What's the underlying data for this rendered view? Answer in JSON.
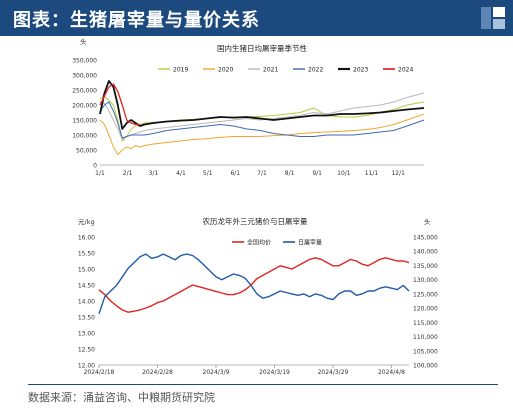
{
  "header": {
    "title": "图表：生猪屠宰量与量价关系"
  },
  "source": "数据来源：涌益咨询、中粮期货研究院",
  "chart_data": [
    {
      "type": "line",
      "title": "国内生猪日均屠宰量季节性",
      "ylabel": "头",
      "ylim": [
        0,
        350000
      ],
      "yticks": [
        "0",
        "50,000",
        "100,000",
        "150,000",
        "200,000",
        "250,000",
        "300,000",
        "350,000"
      ],
      "xticks": [
        "1/1",
        "2/1",
        "3/1",
        "4/1",
        "5/1",
        "6/1",
        "7/1",
        "8/1",
        "9/1",
        "10/1",
        "11/1",
        "12/1"
      ],
      "x": [
        0,
        5,
        10,
        15,
        20,
        25,
        30,
        35,
        40,
        45,
        50,
        60,
        75,
        90,
        105,
        120,
        135,
        150,
        165,
        180,
        195,
        210,
        225,
        240,
        255,
        270,
        285,
        300,
        315,
        330,
        345,
        364
      ],
      "series": [
        {
          "name": "2019",
          "color": "#b9cc3c",
          "width": 1,
          "values": [
            220000,
            230000,
            215000,
            200000,
            150000,
            80000,
            95000,
            120000,
            130000,
            135000,
            140000,
            142000,
            145000,
            150000,
            152000,
            155000,
            158000,
            160000,
            160000,
            162000,
            165000,
            170000,
            175000,
            190000,
            165000,
            160000,
            160000,
            165000,
            175000,
            185000,
            200000,
            210000
          ]
        },
        {
          "name": "2020",
          "color": "#f2a630",
          "width": 1,
          "values": [
            150000,
            135000,
            100000,
            60000,
            35000,
            50000,
            60000,
            55000,
            65000,
            60000,
            65000,
            70000,
            75000,
            80000,
            85000,
            88000,
            92000,
            95000,
            95000,
            95000,
            98000,
            100000,
            105000,
            108000,
            110000,
            112000,
            115000,
            118000,
            125000,
            135000,
            150000,
            170000
          ]
        },
        {
          "name": "2021",
          "color": "#b8b8b8",
          "width": 1,
          "values": [
            210000,
            205000,
            180000,
            150000,
            120000,
            85000,
            95000,
            100000,
            105000,
            110000,
            115000,
            120000,
            125000,
            130000,
            135000,
            140000,
            145000,
            150000,
            155000,
            150000,
            155000,
            160000,
            165000,
            175000,
            170000,
            180000,
            190000,
            195000,
            200000,
            210000,
            225000,
            240000
          ]
        },
        {
          "name": "2022",
          "color": "#3d6ab0",
          "width": 1,
          "values": [
            180000,
            200000,
            210000,
            180000,
            140000,
            90000,
            95000,
            100000,
            100000,
            100000,
            100000,
            105000,
            115000,
            120000,
            125000,
            130000,
            135000,
            130000,
            120000,
            115000,
            105000,
            100000,
            95000,
            95000,
            100000,
            100000,
            100000,
            105000,
            110000,
            115000,
            130000,
            150000
          ]
        },
        {
          "name": "2023",
          "color": "#111111",
          "width": 1.8,
          "values": [
            170000,
            240000,
            280000,
            260000,
            200000,
            120000,
            140000,
            150000,
            140000,
            130000,
            135000,
            140000,
            145000,
            148000,
            150000,
            155000,
            160000,
            158000,
            160000,
            155000,
            150000,
            155000,
            160000,
            165000,
            165000,
            170000,
            170000,
            172000,
            175000,
            180000,
            185000,
            190000
          ]
        },
        {
          "name": "2024",
          "color": "#e02424",
          "width": 1.3,
          "values": [
            200000,
            230000,
            260000,
            270000,
            245000,
            200000,
            150000,
            140000,
            135000,
            135000,
            null,
            null,
            null,
            null,
            null,
            null,
            null,
            null,
            null,
            null,
            null,
            null,
            null,
            null,
            null,
            null,
            null,
            null,
            null,
            null,
            null,
            null
          ]
        }
      ]
    },
    {
      "type": "line",
      "title": "农历龙年外三元猪价与日屠宰量",
      "ylabel_left": "元/kg",
      "ylabel_right": "头",
      "ylim_left": [
        12.0,
        16.0
      ],
      "ylim_right": [
        100000,
        145000
      ],
      "yticks_left": [
        "12.00",
        "12.50",
        "13.00",
        "13.50",
        "14.00",
        "14.50",
        "15.00",
        "15.50",
        "16.00"
      ],
      "yticks_right": [
        "100,000",
        "105,000",
        "110,000",
        "115,000",
        "120,000",
        "125,000",
        "130,000",
        "135,000",
        "140,000",
        "145,000"
      ],
      "xticks": [
        "2024/2/18",
        "2024/2/28",
        "2024/3/9",
        "2024/3/19",
        "2024/3/29",
        "2024/4/8"
      ],
      "x_start": "2024/2/18",
      "x_end": "2024/4/12",
      "series": [
        {
          "name": "全国均价",
          "axis": "left",
          "color": "#e02424",
          "values": [
            14.35,
            14.2,
            14.0,
            13.85,
            13.72,
            13.65,
            13.68,
            13.72,
            13.78,
            13.85,
            13.95,
            14.0,
            14.1,
            14.2,
            14.3,
            14.4,
            14.5,
            14.45,
            14.4,
            14.35,
            14.3,
            14.25,
            14.2,
            14.2,
            14.25,
            14.35,
            14.5,
            14.7,
            14.8,
            14.9,
            15.0,
            15.1,
            15.05,
            15.0,
            15.1,
            15.2,
            15.3,
            15.35,
            15.3,
            15.2,
            15.1,
            15.1,
            15.2,
            15.3,
            15.25,
            15.15,
            15.1,
            15.2,
            15.3,
            15.35,
            15.3,
            15.25,
            15.25,
            15.2
          ]
        },
        {
          "name": "日屠宰量",
          "axis": "right",
          "color": "#1f5ba8",
          "values": [
            118000,
            124000,
            126000,
            128000,
            131000,
            134000,
            136000,
            138000,
            139000,
            137500,
            138000,
            139000,
            138000,
            137000,
            138500,
            139000,
            138500,
            137000,
            135000,
            133000,
            131000,
            130000,
            131000,
            132000,
            131500,
            130500,
            128000,
            125000,
            123500,
            124000,
            125000,
            126000,
            125500,
            125000,
            124500,
            125000,
            124000,
            125000,
            124500,
            123500,
            123000,
            125000,
            126000,
            126000,
            124500,
            125000,
            126000,
            126000,
            127000,
            127500,
            127000,
            126500,
            128000,
            126000
          ]
        }
      ]
    }
  ]
}
